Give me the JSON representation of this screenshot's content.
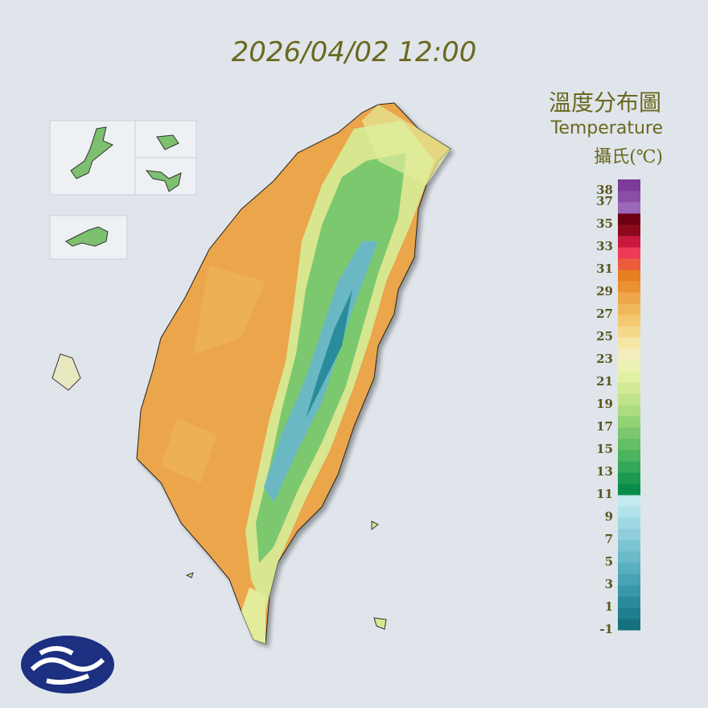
{
  "header": {
    "datetime": "2026/04/02 12:00",
    "title": "溫度分布圖",
    "subtitle": "Temperature",
    "unit": "攝氏(℃)"
  },
  "legend": {
    "labels": [
      38,
      37,
      35,
      33,
      31,
      29,
      27,
      25,
      23,
      21,
      19,
      17,
      15,
      13,
      11,
      9,
      7,
      5,
      3,
      1,
      -1
    ],
    "colors": [
      "#17707f",
      "#1f7f8e",
      "#2a8c9b",
      "#3898a8",
      "#48a4b4",
      "#58afbf",
      "#6abac9",
      "#7cc4d2",
      "#8ecedb",
      "#a0d8e3",
      "#b2e2ea",
      "#c2eaf0",
      "#0a8c48",
      "#1e9a50",
      "#34a758",
      "#4cb35e",
      "#64be66",
      "#7cc86e",
      "#94d276",
      "#acdb80",
      "#c0e38a",
      "#d2ea96",
      "#e2f0a4",
      "#ecf2b4",
      "#f2eebe",
      "#f6e6a6",
      "#f5d88a",
      "#f3c870",
      "#f0b85a",
      "#eea648",
      "#ea9232",
      "#e67e22",
      "#ec5c3c",
      "#ee3a56",
      "#c81a3e",
      "#8a0a1c",
      "#6c0012",
      "#9a68b8",
      "#8a4ea6",
      "#7a3c98"
    ]
  }
}
